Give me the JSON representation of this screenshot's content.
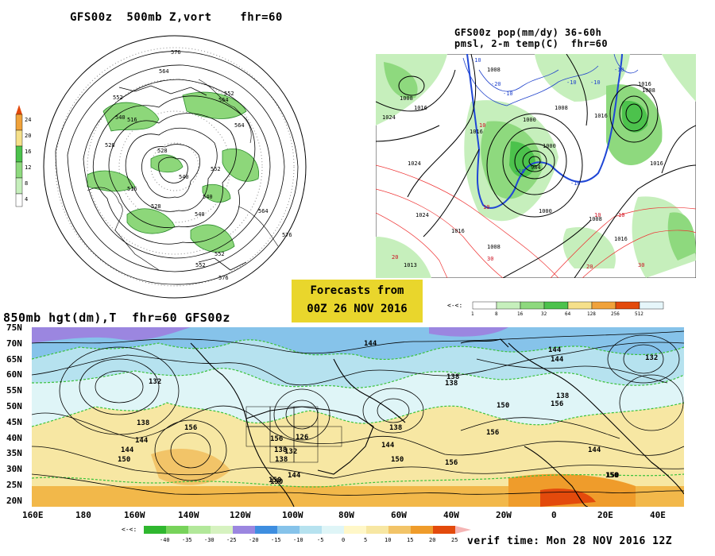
{
  "panels": {
    "z500": {
      "title": "GFS00z  500mb Z,vort    fhr=60",
      "labels": [
        "576",
        "564",
        "552",
        "540",
        "528",
        "516",
        "528",
        "540",
        "552",
        "564",
        "576",
        "552",
        "540",
        "516",
        "552",
        "564",
        "576",
        "528",
        "540",
        "552",
        "564"
      ],
      "colorbar": [
        "24",
        "20",
        "16",
        "12",
        "8",
        "4"
      ]
    },
    "pmsl": {
      "title1": "GFS00z pop(mm/dy) 36-60h",
      "title2": "pmsl, 2-m temp(C)  fhr=60",
      "labels": [
        "1008",
        "1016",
        "1024",
        "1000",
        "1008",
        "1016",
        "1024",
        "1016",
        "1008",
        "1000",
        "984",
        "1000",
        "1016",
        "1008",
        "1016",
        "1024",
        "1008",
        "1016",
        "1013",
        "1016",
        "1008"
      ],
      "temp_labels": [
        "-10",
        "-20",
        "-10",
        "-10",
        "-10",
        "10",
        "-10",
        "10",
        "-10",
        "10",
        "-10",
        "10",
        "20",
        "30",
        "20",
        "30"
      ],
      "colorbar": [
        "1",
        "8",
        "16",
        "32",
        "64",
        "128",
        "256",
        "512"
      ]
    },
    "hgt850": {
      "title": "850mb hgt(dm),T  fhr=60 GFS00z",
      "lat_labels": [
        "75N",
        "70N",
        "65N",
        "60N",
        "55N",
        "50N",
        "45N",
        "40N",
        "35N",
        "30N",
        "25N",
        "20N"
      ],
      "lon_labels": [
        "160E",
        "180",
        "160W",
        "140W",
        "120W",
        "100W",
        "80W",
        "60W",
        "40W",
        "20W",
        "0",
        "20E",
        "40E"
      ],
      "contour_labels": [
        "144",
        "132",
        "138",
        "156",
        "144",
        "150",
        "138",
        "156",
        "126",
        "132",
        "138",
        "144",
        "150",
        "144",
        "138",
        "150",
        "156",
        "144",
        "132",
        "138",
        "144",
        "150",
        "156",
        "144",
        "150",
        "156",
        "138",
        "144",
        "150",
        "138",
        "150"
      ],
      "colorbar": [
        "-40",
        "-35",
        "-30",
        "-25",
        "-20",
        "-15",
        "-10",
        "-5",
        "0",
        "5",
        "10",
        "15",
        "20",
        "25"
      ]
    }
  },
  "banner": {
    "line1": "Forecasts from",
    "line2": "00Z 26 NOV 2016"
  },
  "verif": "verif time: Mon 28 NOV 2016 12Z"
}
